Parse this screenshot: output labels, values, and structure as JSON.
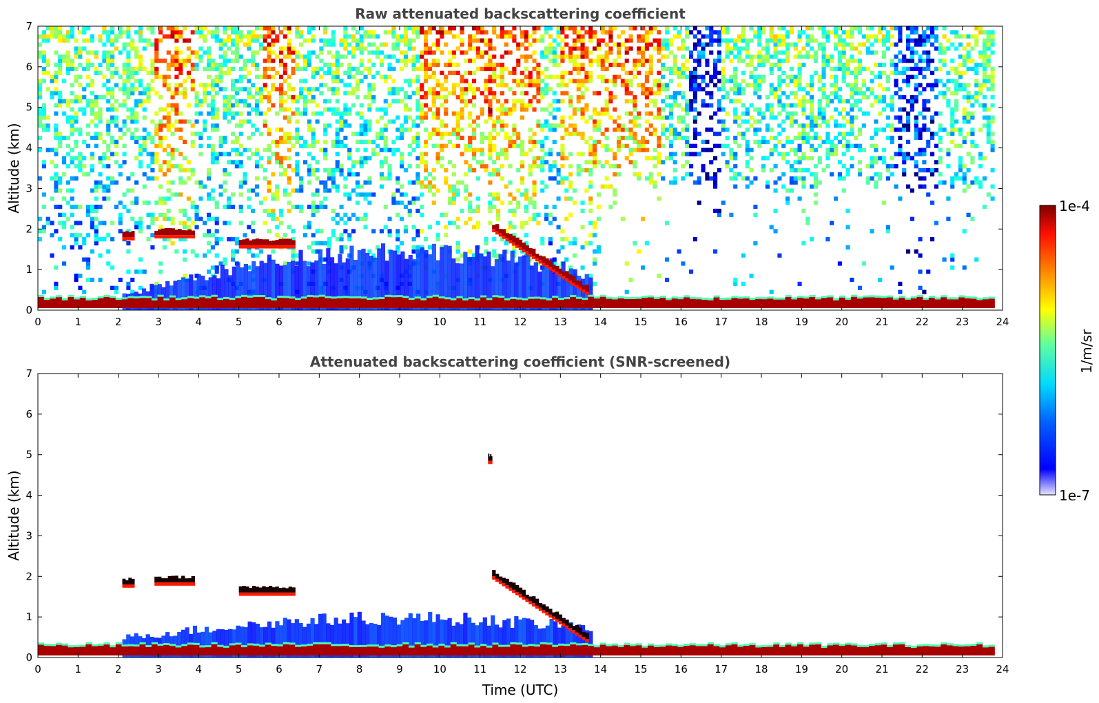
{
  "chart_data": [
    {
      "type": "heatmap",
      "title": "Raw attenuated backscattering coefficient",
      "xlabel": "",
      "ylabel": "Altitude (km)",
      "xlim": [
        0,
        24
      ],
      "ylim": [
        0,
        7
      ],
      "xticks": [
        "0",
        "1",
        "2",
        "3",
        "4",
        "5",
        "6",
        "7",
        "8",
        "9",
        "10",
        "11",
        "12",
        "13",
        "14",
        "15",
        "16",
        "17",
        "18",
        "19",
        "20",
        "21",
        "22",
        "23",
        "24"
      ],
      "yticks": [
        "0",
        "1",
        "2",
        "3",
        "4",
        "5",
        "6",
        "7"
      ],
      "colorscale": "jet, log",
      "features": {
        "surface_layer": {
          "time_utc": [
            0,
            23.8
          ],
          "altitude_km": [
            0.05,
            0.3
          ],
          "level": "high"
        },
        "boundary_layer_signal": {
          "time_utc": [
            2.1,
            13.8
          ],
          "altitude_km_max": [
            0.4,
            1.5
          ],
          "level": "low"
        },
        "cloud_layers": [
          {
            "time_utc": [
              2.1,
              2.4
            ],
            "altitude_km": 1.8
          },
          {
            "time_utc": [
              2.9,
              3.9
            ],
            "altitude_km": 1.85
          },
          {
            "time_utc": [
              5.0,
              6.4
            ],
            "altitude_km": 1.6
          },
          {
            "time_utc": [
              11.3,
              13.7
            ],
            "altitude_km": [
              2.0,
              0.4
            ]
          },
          {
            "time_utc": [
              11.2,
              11.3
            ],
            "altitude_km": 4.85
          }
        ],
        "noise_background": {
          "altitude_km": [
            1,
            7
          ],
          "level": "medium-high"
        }
      }
    },
    {
      "type": "heatmap",
      "title": "Attenuated backscattering coefficient (SNR-screened)",
      "xlabel": "Time (UTC)",
      "ylabel": "Altitude (km)",
      "xlim": [
        0,
        24
      ],
      "ylim": [
        0,
        7
      ],
      "xticks": [
        "0",
        "1",
        "2",
        "3",
        "4",
        "5",
        "6",
        "7",
        "8",
        "9",
        "10",
        "11",
        "12",
        "13",
        "14",
        "15",
        "16",
        "17",
        "18",
        "19",
        "20",
        "21",
        "22",
        "23",
        "24"
      ],
      "yticks": [
        "0",
        "1",
        "2",
        "3",
        "4",
        "5",
        "6",
        "7"
      ],
      "colorscale": "jet, log",
      "features": {
        "surface_layer": {
          "time_utc": [
            0,
            23.8
          ],
          "altitude_km": [
            0.05,
            0.3
          ],
          "level": "high"
        },
        "boundary_layer_signal": {
          "time_utc": [
            2.1,
            13.8
          ],
          "altitude_km_max": [
            0.5,
            1.0
          ],
          "level": "low"
        },
        "cloud_layers": [
          {
            "time_utc": [
              2.1,
              2.4
            ],
            "altitude_km": 1.8
          },
          {
            "time_utc": [
              2.9,
              3.9
            ],
            "altitude_km": 1.85
          },
          {
            "time_utc": [
              5.0,
              6.4
            ],
            "altitude_km": 1.6
          },
          {
            "time_utc": [
              11.3,
              13.7
            ],
            "altitude_km": [
              2.0,
              0.4
            ]
          },
          {
            "time_utc": [
              11.2,
              11.3
            ],
            "altitude_km": 4.85
          }
        ]
      }
    }
  ],
  "colorbar": {
    "label": "1/m/sr",
    "max_label": "1e-4",
    "min_label": "1e-7",
    "range": [
      1e-07,
      0.0001
    ],
    "scale": "log"
  },
  "colors": {
    "jet": [
      "#00007f",
      "#0000ff",
      "#007fff",
      "#00ffff",
      "#7fff7f",
      "#ffff00",
      "#ff7f00",
      "#ff0000",
      "#7f0000"
    ],
    "low_fade": "#e6e6ff"
  }
}
